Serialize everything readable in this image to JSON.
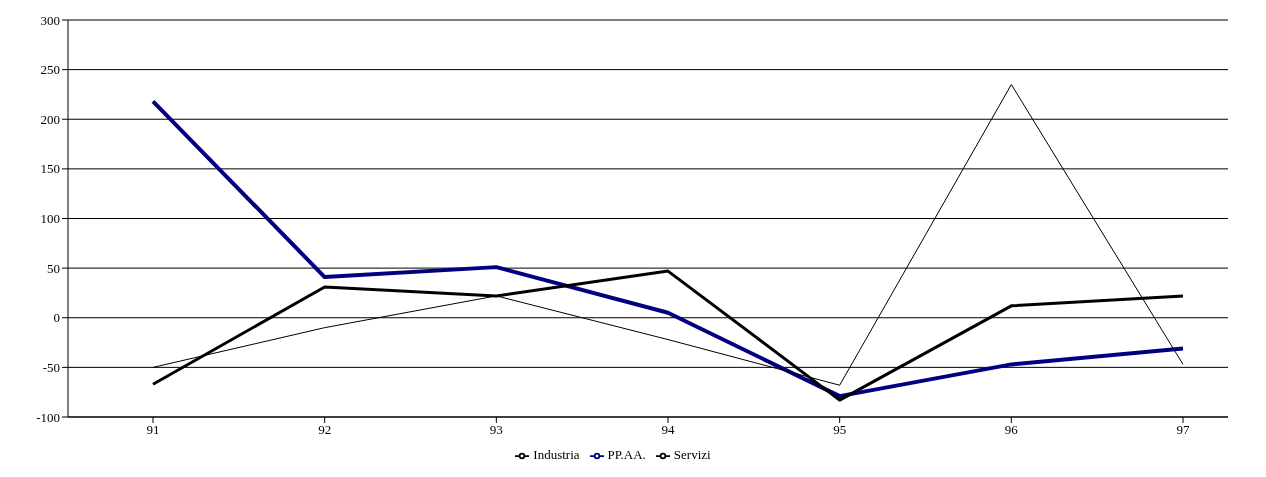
{
  "chart_data": {
    "type": "line",
    "categories": [
      "91",
      "92",
      "93",
      "94",
      "95",
      "96",
      "97"
    ],
    "series": [
      {
        "name": "PP.AA.",
        "color": "#000080",
        "values": [
          218,
          41,
          51,
          5,
          -79,
          -47,
          -31
        ]
      },
      {
        "name": "Industria",
        "color": "#000000",
        "values": [
          -50,
          -10,
          22,
          -22,
          -68,
          235,
          -47
        ]
      },
      {
        "name": "Servizi",
        "color": "#000000",
        "values": [
          -67,
          31,
          22,
          47,
          -83,
          12,
          22
        ]
      }
    ],
    "ylim": [
      -100,
      300
    ],
    "yticks": [
      -100,
      -50,
      0,
      50,
      100,
      150,
      200,
      250,
      300
    ],
    "grid": "y",
    "legend": "bottom",
    "marker": "none",
    "line_style": "solid"
  }
}
